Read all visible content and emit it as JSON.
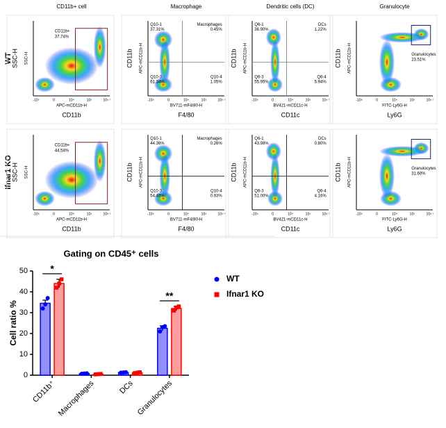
{
  "flow": {
    "columns": [
      "CD11b+ cell",
      "Macrophage",
      "Dendritic cells (DC)",
      "Granulocyte"
    ],
    "rows": [
      "WT",
      "Ifnar1 KO"
    ],
    "x_tick_labels": [
      "-10⁶",
      "0",
      "10⁴",
      "10⁵",
      "10⁶·⁷"
    ],
    "panels": [
      {
        "y_label": "SSC-H",
        "y_channel": "SSC-H",
        "x_channel": "APC-mCD11b-H",
        "x_label": "CD11b",
        "gates": [
          {
            "name": "CD11b+",
            "pct": "37.74%"
          }
        ]
      },
      {
        "y_label": "CD11b",
        "y_channel": "APC-mCD11b-H",
        "x_channel": "BV711-mF4/80-H",
        "x_label": "F4/80",
        "gates": [
          {
            "name": "Q10-1",
            "pct": "37.31%"
          },
          {
            "name": "Macrophages",
            "pct": "0.45%"
          },
          {
            "name": "Q10-3",
            "pct": "61.34%"
          },
          {
            "name": "Q10-4",
            "pct": "1.05%"
          }
        ]
      },
      {
        "y_label": "CD11b",
        "y_channel": "APC-mCD11b-H",
        "x_channel": "BV421-mCD11c-H",
        "x_label": "CD11c",
        "gates": [
          {
            "name": "Q6-1",
            "pct": "36.90%"
          },
          {
            "name": "DCs",
            "pct": "1.22%"
          },
          {
            "name": "Q6-3",
            "pct": "55.95%"
          },
          {
            "name": "Q6-4",
            "pct": "5.94%"
          }
        ]
      },
      {
        "y_label": "CD11b",
        "y_channel": "APC-mCD11b-H",
        "x_channel": "FITC-Ly6G-H",
        "x_label": "Ly6G",
        "gates": [
          {
            "name": "Granulocytes",
            "pct": "23.51%"
          }
        ]
      },
      {
        "y_label": "SSC-H",
        "y_channel": "SSC-H",
        "x_channel": "APC-mCD11b-H",
        "x_label": "CD11b",
        "gates": [
          {
            "name": "CD11b+",
            "pct": "44.54%"
          }
        ]
      },
      {
        "y_label": "CD11b",
        "y_channel": "APC-mCD11b-H",
        "x_channel": "BV711-mF4/80-H",
        "x_label": "F4/80",
        "gates": [
          {
            "name": "Q10-1",
            "pct": "44.36%"
          },
          {
            "name": "Macrophages",
            "pct": "0.26%"
          },
          {
            "name": "Q10-3",
            "pct": "54.45%"
          },
          {
            "name": "Q10-4",
            "pct": "0.93%"
          }
        ]
      },
      {
        "y_label": "CD11b",
        "y_channel": "APC-mCD11b-H",
        "x_channel": "BV421-mCD11c-H",
        "x_label": "CD11c",
        "gates": [
          {
            "name": "Q6-1",
            "pct": "43.98%"
          },
          {
            "name": "DCs",
            "pct": "0.80%"
          },
          {
            "name": "Q6-3",
            "pct": "51.00%"
          },
          {
            "name": "Q6-4",
            "pct": "4.16%"
          }
        ]
      },
      {
        "y_label": "CD11b",
        "y_channel": "APC-mCD11b-H",
        "x_channel": "FITC-Ly6G-H",
        "x_label": "Ly6G",
        "gates": [
          {
            "name": "Granulocytes",
            "pct": "31.60%"
          }
        ]
      }
    ]
  },
  "chart_data": {
    "type": "bar",
    "title": "Gating on CD45⁺ cells",
    "ylabel": "Cell ratio %",
    "categories": [
      "CD11b⁺",
      "Macrophages",
      "DCs",
      "Granulocytes"
    ],
    "series": [
      {
        "name": "WT",
        "color": "#0000ff",
        "fill": "#9090ff",
        "values": [
          34.5,
          0.8,
          1.3,
          22.5
        ],
        "errors": [
          1.5,
          0.1,
          0.1,
          1.2
        ],
        "points": [
          [
            32,
            34,
            37
          ],
          [
            0.7,
            0.8,
            0.9
          ],
          [
            1.2,
            1.3,
            1.4
          ],
          [
            21,
            23,
            23.5
          ]
        ]
      },
      {
        "name": "Ifnar1 KO",
        "color": "#ff0000",
        "fill": "#ff9c9c",
        "values": [
          44,
          0.5,
          1.2,
          32
        ],
        "errors": [
          2,
          0.1,
          0.1,
          1
        ],
        "points": [
          [
            42,
            44,
            46
          ],
          [
            0.4,
            0.5,
            0.6
          ],
          [
            1.0,
            1.2,
            1.4
          ],
          [
            31,
            32.5,
            33
          ]
        ]
      }
    ],
    "ylim": [
      0,
      50
    ],
    "yticks": [
      0,
      10,
      20,
      30,
      40,
      50
    ],
    "annotations": [
      {
        "category": 0,
        "label": "*"
      },
      {
        "category": 3,
        "label": "**"
      }
    ],
    "legend": "right"
  }
}
